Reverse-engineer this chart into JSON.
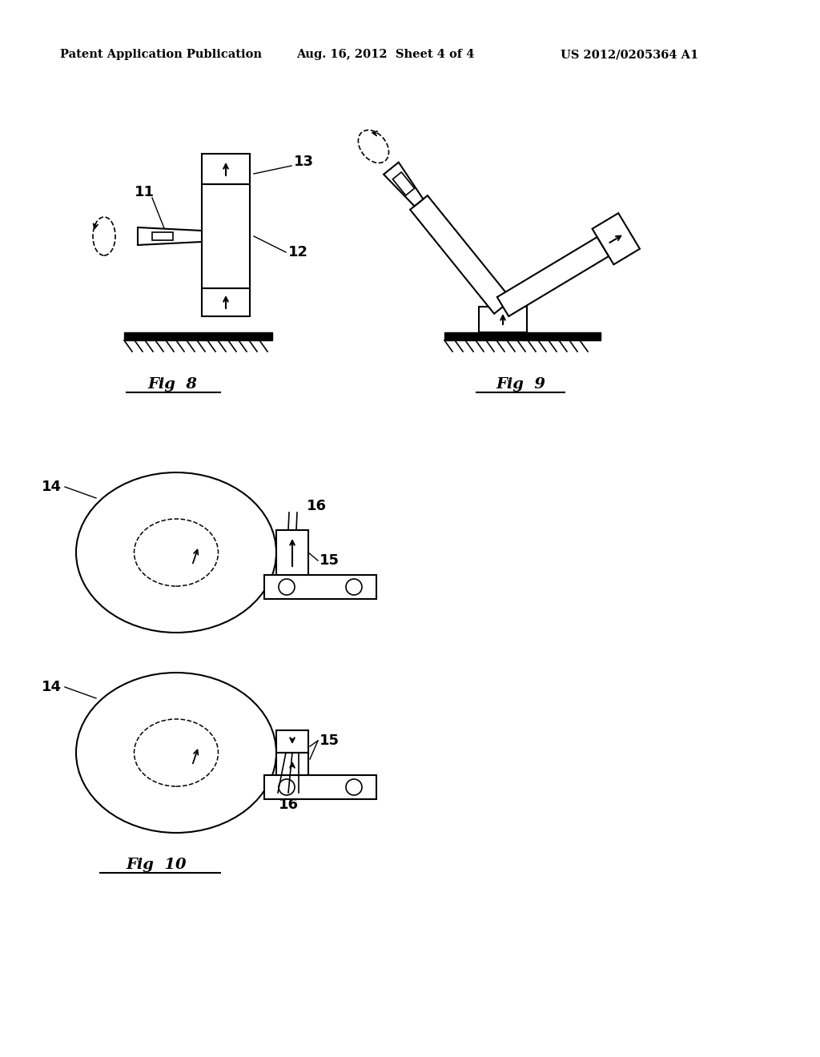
{
  "background_color": "#ffffff",
  "header_left": "Patent Application Publication",
  "header_mid": "Aug. 16, 2012  Sheet 4 of 4",
  "header_right": "US 2012/0205364 A1",
  "line_color": "#000000",
  "lw": 1.5
}
